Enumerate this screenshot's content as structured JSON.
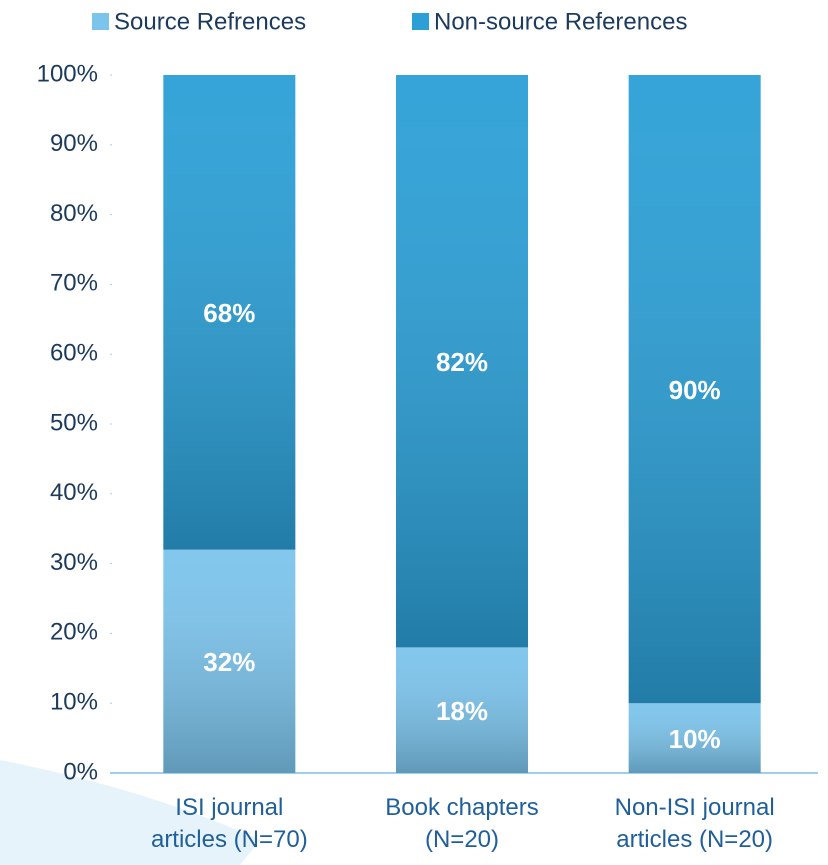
{
  "chart_data": {
    "type": "stacked_bar",
    "categories": [
      "ISI journal\narticles (N=70)",
      "Book chapters\n(N=20)",
      "Non-ISI journal\narticles (N=20)"
    ],
    "series": [
      {
        "name": "Source Refrences",
        "color": "#7cc4ec",
        "values": [
          32,
          18,
          10
        ],
        "value_labels": [
          "32%",
          "18%",
          "10%"
        ]
      },
      {
        "name": "Non-source References",
        "color": "#2b9fd6",
        "values": [
          68,
          82,
          90
        ],
        "value_labels": [
          "68%",
          "82%",
          "90%"
        ]
      }
    ],
    "ylim": [
      0,
      100
    ],
    "yticks": [
      {
        "value": 0,
        "label": "0%"
      },
      {
        "value": 10,
        "label": "10%"
      },
      {
        "value": 20,
        "label": "20%"
      },
      {
        "value": 30,
        "label": "30%"
      },
      {
        "value": 40,
        "label": "40%"
      },
      {
        "value": 50,
        "label": "50%"
      },
      {
        "value": 60,
        "label": "60%"
      },
      {
        "value": 70,
        "label": "70%"
      },
      {
        "value": 80,
        "label": "80%"
      },
      {
        "value": 90,
        "label": "90%"
      },
      {
        "value": 100,
        "label": "100%"
      }
    ],
    "legend": "top"
  }
}
